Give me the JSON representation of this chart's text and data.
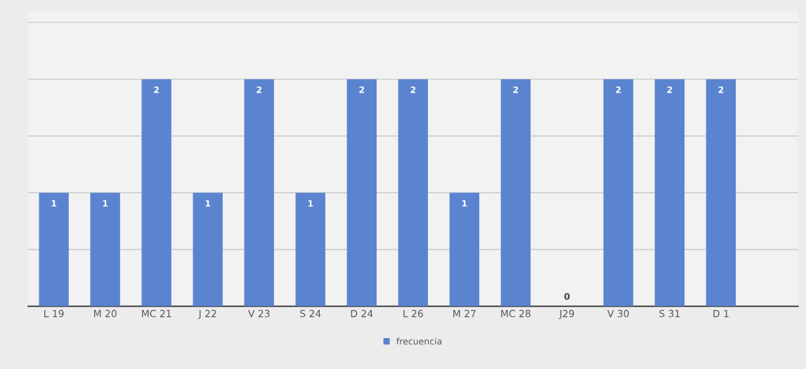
{
  "chart_data": {
    "type": "bar",
    "categories": [
      "L 19",
      "M 20",
      "MC 21",
      "J 22",
      "V 23",
      "S 24",
      "D 24",
      "L 26",
      "M 27",
      "MC 28",
      "J29",
      "V 30",
      "S 31",
      "D 1"
    ],
    "series": [
      {
        "name": "frecuencia",
        "color": "#5b84d0",
        "values": [
          1,
          1,
          2,
          1,
          2,
          1,
          2,
          2,
          1,
          2,
          0,
          2,
          2,
          2
        ]
      }
    ],
    "ylim": [
      0,
      2.6
    ],
    "yticks": [
      {
        "value": 0.5,
        "label": null
      },
      {
        "value": 1,
        "label": null
      },
      {
        "value": 1.5,
        "label": null
      },
      {
        "value": 2,
        "label": null
      },
      {
        "value": 2.5,
        "label": null
      }
    ],
    "grid": "y",
    "legend": "bottom",
    "data_labels": true,
    "tick_labels": "x"
  }
}
